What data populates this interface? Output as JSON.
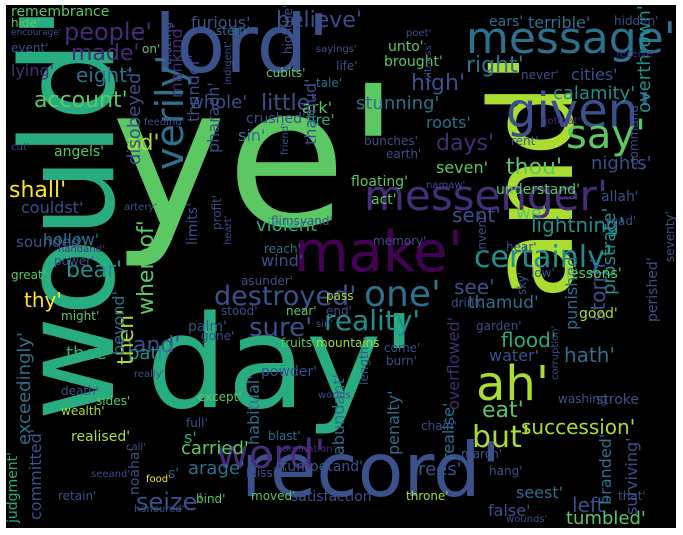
{
  "colors": {
    "background": "#000000",
    "palette": [
      "#440154",
      "#472c7a",
      "#3b518b",
      "#2c718e",
      "#21908d",
      "#27ad81",
      "#5cc863",
      "#aadc32",
      "#fde725"
    ]
  },
  "words": [
    {
      "text": "ye'",
      "color": "#5cc863"
    },
    {
      "text": "would'",
      "color": "#27ad81"
    },
    {
      "text": "day'",
      "color": "#27ad81"
    },
    {
      "text": "and'",
      "color": "#aadc32"
    },
    {
      "text": "lord'",
      "color": "#3b518b"
    },
    {
      "text": "record'",
      "color": "#3b518b"
    },
    {
      "text": "message'",
      "color": "#2c718e"
    },
    {
      "text": "given'",
      "color": "#3b518b"
    },
    {
      "text": "messenger'",
      "color": "#472c7a"
    },
    {
      "text": "make'",
      "color": "#440154"
    },
    {
      "text": "say'",
      "color": "#5cc863"
    },
    {
      "text": "word'",
      "color": "#472c7a"
    },
    {
      "text": "ah'",
      "color": "#aadc32"
    },
    {
      "text": "one'",
      "color": "#2c718e"
    },
    {
      "text": "certainly'",
      "color": "#21908d"
    },
    {
      "text": "but'",
      "color": "#aadc32"
    },
    {
      "text": "verily'",
      "color": "#2c718e"
    },
    {
      "text": "destroyed'",
      "color": "#3b518b"
    },
    {
      "text": "reality'",
      "color": "#21908d"
    },
    {
      "text": "sure'",
      "color": "#3b518b"
    },
    {
      "text": "people'",
      "color": "#472c7a"
    },
    {
      "text": "believe'",
      "color": "#3b518b"
    },
    {
      "text": "made'",
      "color": "#472c7a"
    },
    {
      "text": "eight'",
      "color": "#2c718e"
    },
    {
      "text": "right'",
      "color": "#2c718e"
    },
    {
      "text": "high'",
      "color": "#3b518b"
    },
    {
      "text": "account'",
      "color": "#5cc863"
    },
    {
      "text": "little'",
      "color": "#3b518b"
    },
    {
      "text": "whole'",
      "color": "#3b518b"
    },
    {
      "text": "stunning'",
      "color": "#2c718e"
    },
    {
      "text": "shall'",
      "color": "#fde725"
    },
    {
      "text": "ad'",
      "color": "#aadc32"
    },
    {
      "text": "thou'",
      "color": "#5cc863"
    },
    {
      "text": "days'",
      "color": "#472c7a"
    },
    {
      "text": "sent'",
      "color": "#3b518b"
    },
    {
      "text": "we'",
      "color": "#5cc863"
    },
    {
      "text": "lightning'",
      "color": "#21908d"
    },
    {
      "text": "bear'",
      "color": "#21908d"
    },
    {
      "text": "thy'",
      "color": "#fde725"
    },
    {
      "text": "see'",
      "color": "#3b518b"
    },
    {
      "text": "flood'",
      "color": "#27ad81"
    },
    {
      "text": "storm'",
      "color": "#3b518b"
    },
    {
      "text": "hath'",
      "color": "#2c718e"
    },
    {
      "text": "eat'",
      "color": "#5cc863"
    },
    {
      "text": "succession'",
      "color": "#aadc32"
    },
    {
      "text": "hand'",
      "color": "#3b518b"
    },
    {
      "text": "path'",
      "color": "#21908d"
    },
    {
      "text": "then'",
      "color": "#aadc32"
    },
    {
      "text": "whereof'",
      "color": "#5cc863"
    },
    {
      "text": "seize'",
      "color": "#3b518b"
    },
    {
      "text": "arage'",
      "color": "#2c718e"
    },
    {
      "text": "left'",
      "color": "#3b518b"
    },
    {
      "text": "tumbled'",
      "color": "#5cc863"
    },
    {
      "text": "false'",
      "color": "#3b518b"
    },
    {
      "text": "seest'",
      "color": "#2c718e"
    },
    {
      "text": "trees'",
      "color": "#3b518b"
    },
    {
      "text": "furious'",
      "color": "#3b518b"
    },
    {
      "text": "terrible'",
      "color": "#2c718e"
    },
    {
      "text": "calamity'",
      "color": "#21908d"
    },
    {
      "text": "cities'",
      "color": "#3b518b"
    },
    {
      "text": "overthrown'",
      "color": "#21908d"
    },
    {
      "text": "nights'",
      "color": "#3b518b"
    },
    {
      "text": "seven'",
      "color": "#5cc863"
    },
    {
      "text": "roots'",
      "color": "#2c718e"
    },
    {
      "text": "sin'",
      "color": "#2c718e"
    },
    {
      "text": "ark'",
      "color": "#5cc863"
    },
    {
      "text": "fire'",
      "color": "#27ad81"
    },
    {
      "text": "thunder'",
      "color": "#3b518b"
    },
    {
      "text": "mankind'",
      "color": "#472c7a"
    },
    {
      "text": "disobeyed'",
      "color": "#3b518b"
    },
    {
      "text": "pharaoh'",
      "color": "#3b518b"
    },
    {
      "text": "thamud'",
      "color": "#3b518b"
    },
    {
      "text": "violent'",
      "color": "#27ad81"
    },
    {
      "text": "wind'",
      "color": "#3b518b"
    },
    {
      "text": "floating'",
      "color": "#5cc863"
    },
    {
      "text": "act'",
      "color": "#5cc863"
    },
    {
      "text": "couldst'",
      "color": "#3b518b"
    },
    {
      "text": "sounded'",
      "color": "#3b518b"
    },
    {
      "text": "hollow'",
      "color": "#2c718e"
    },
    {
      "text": "thee'",
      "color": "#27ad81"
    },
    {
      "text": "exceedingly'",
      "color": "#2c718e"
    },
    {
      "text": "beyond'",
      "color": "#2c718e"
    },
    {
      "text": "palm'",
      "color": "#3b518b"
    },
    {
      "text": "thamud'",
      "color": "#2c718e"
    },
    {
      "text": "water'",
      "color": "#3b518b"
    },
    {
      "text": "punished'",
      "color": "#2c718e"
    },
    {
      "text": "prostrate'",
      "color": "#21908d"
    },
    {
      "text": "perished'",
      "color": "#3b518b"
    },
    {
      "text": "seventy'",
      "color": "#3b518b"
    },
    {
      "text": "surviving'",
      "color": "#3b518b"
    },
    {
      "text": "branded'",
      "color": "#2c718e"
    },
    {
      "text": "carried'",
      "color": "#5cc863"
    },
    {
      "text": "abundant'",
      "color": "#2c718e"
    },
    {
      "text": "penalty'",
      "color": "#2c718e"
    },
    {
      "text": "realise'",
      "color": "#2c718e"
    },
    {
      "text": "overflowed'",
      "color": "#472c7a"
    },
    {
      "text": "habitual'",
      "color": "#2c718e"
    },
    {
      "text": "noaha'",
      "color": "#3b518b"
    },
    {
      "text": "committed'",
      "color": "#3b518b"
    },
    {
      "text": "judgment'",
      "color": "#27ad81"
    },
    {
      "text": "remembrance",
      "color": "#5cc863"
    },
    {
      "text": "hide'",
      "color": "#5cc863"
    },
    {
      "text": "encourage'",
      "color": "#3b518b"
    },
    {
      "text": "event'",
      "color": "#3b518b"
    },
    {
      "text": "lying'",
      "color": "#472c7a"
    },
    {
      "text": "on'",
      "color": "#5cc863"
    },
    {
      "text": "blazing'",
      "color": "#3b518b"
    },
    {
      "text": "indigent'",
      "color": "#3b518b"
    },
    {
      "text": "cubits'",
      "color": "#5cc863"
    },
    {
      "text": "sayings'",
      "color": "#3b518b"
    },
    {
      "text": "life'",
      "color": "#3b518b"
    },
    {
      "text": "tale'",
      "color": "#2c718e"
    },
    {
      "text": "unto'",
      "color": "#5cc863"
    },
    {
      "text": "brought'",
      "color": "#5cc863"
    },
    {
      "text": "poet'",
      "color": "#3b518b"
    },
    {
      "text": "ears'",
      "color": "#2c718e"
    },
    {
      "text": "hidden'",
      "color": "#3b518b"
    },
    {
      "text": "receive'",
      "color": "#472c7a"
    },
    {
      "text": "never'",
      "color": "#3b518b"
    },
    {
      "text": "stern'",
      "color": "#2c718e"
    },
    {
      "text": "highthe'",
      "color": "#3b518b"
    },
    {
      "text": "feeding'",
      "color": "#3b518b"
    },
    {
      "text": "crushed'",
      "color": "#3b518b"
    },
    {
      "text": "cut'",
      "color": "#3b518b"
    },
    {
      "text": "angels'",
      "color": "#5cc863"
    },
    {
      "text": "bunches'",
      "color": "#3b518b"
    },
    {
      "text": "earth'",
      "color": "#3b518b"
    },
    {
      "text": "friend'",
      "color": "#3b518b"
    },
    {
      "text": "witness'",
      "color": "#3b518b"
    },
    {
      "text": "rent'",
      "color": "#3b518b"
    },
    {
      "text": "gotthat'",
      "color": "#472c7a"
    },
    {
      "text": "understand'",
      "color": "#5cc863"
    },
    {
      "text": "command'",
      "color": "#3b518b"
    },
    {
      "text": "allah'",
      "color": "#3b518b"
    },
    {
      "text": "read'",
      "color": "#3b518b"
    },
    {
      "text": "namaw'",
      "color": "#3b518b"
    },
    {
      "text": "artery'",
      "color": "#3b518b"
    },
    {
      "text": "flimsyand'",
      "color": "#3b518b"
    },
    {
      "text": "heart'",
      "color": "#3b518b"
    },
    {
      "text": "reach'",
      "color": "#2c718e"
    },
    {
      "text": "memory'",
      "color": "#3b518b"
    },
    {
      "text": "hear'",
      "color": "#3b518b"
    },
    {
      "text": "power'",
      "color": "#3b518b"
    },
    {
      "text": "handand'",
      "color": "#472c7a"
    },
    {
      "text": "great'",
      "color": "#5cc863"
    },
    {
      "text": "might'",
      "color": "#5cc863"
    },
    {
      "text": "limits'",
      "color": "#3b518b"
    },
    {
      "text": "profit'",
      "color": "#3b518b"
    },
    {
      "text": "asunder'",
      "color": "#3b518b"
    },
    {
      "text": "invent'",
      "color": "#3b518b"
    },
    {
      "text": "low'",
      "color": "#3b518b"
    },
    {
      "text": "lessons'",
      "color": "#5cc863"
    },
    {
      "text": "sky'",
      "color": "#3b518b"
    },
    {
      "text": "drink'",
      "color": "#3b518b"
    },
    {
      "text": "pass",
      "color": "#aadc32"
    },
    {
      "text": "stood'",
      "color": "#3b518b"
    },
    {
      "text": "near'",
      "color": "#5cc863"
    },
    {
      "text": "end'",
      "color": "#3b518b"
    },
    {
      "text": "garden'",
      "color": "#3b518b"
    },
    {
      "text": "good'",
      "color": "#aadc32"
    },
    {
      "text": "gone'",
      "color": "#3b518b"
    },
    {
      "text": "fruits'",
      "color": "#5cc863"
    },
    {
      "text": "mountains",
      "color": "#aadc32"
    },
    {
      "text": "sin'",
      "color": "#3b518b"
    },
    {
      "text": "come'",
      "color": "#3b518b"
    },
    {
      "text": "burn'",
      "color": "#3b518b"
    },
    {
      "text": "really'",
      "color": "#3b518b"
    },
    {
      "text": "powder'",
      "color": "#3b518b"
    },
    {
      "text": "except'",
      "color": "#5cc863"
    },
    {
      "text": "worlds",
      "color": "#3b518b"
    },
    {
      "text": "corruption'",
      "color": "#3b518b"
    },
    {
      "text": "washing",
      "color": "#3b518b"
    },
    {
      "text": "stroke",
      "color": "#3b518b"
    },
    {
      "text": "death'",
      "color": "#3b518b"
    },
    {
      "text": "wealth'",
      "color": "#aadc32"
    },
    {
      "text": "sides'",
      "color": "#5cc863"
    },
    {
      "text": "length'",
      "color": "#3b518b"
    },
    {
      "text": "chain'",
      "color": "#3b518b"
    },
    {
      "text": "realised'",
      "color": "#aadc32"
    },
    {
      "text": "blast'",
      "color": "#2c718e"
    },
    {
      "text": "call'",
      "color": "#3b518b"
    },
    {
      "text": "full'",
      "color": "#3b518b"
    },
    {
      "text": "seeand'",
      "color": "#3b518b"
    },
    {
      "text": "blissin'",
      "color": "#3b518b"
    },
    {
      "text": "nomination'",
      "color": "#472c7a"
    },
    {
      "text": "trumpetand'",
      "color": "#3b518b"
    },
    {
      "text": "march'",
      "color": "#3b518b"
    },
    {
      "text": "hang'",
      "color": "#3b518b"
    },
    {
      "text": "food'",
      "color": "#fde725"
    },
    {
      "text": "retain'",
      "color": "#3b518b"
    },
    {
      "text": "honoured'",
      "color": "#3b518b"
    },
    {
      "text": "bind'",
      "color": "#5cc863"
    },
    {
      "text": "moved'",
      "color": "#5cc863"
    },
    {
      "text": "satisfaction'",
      "color": "#3b518b"
    },
    {
      "text": "throne'",
      "color": "#aadc32"
    },
    {
      "text": "wounds'",
      "color": "#3b518b"
    },
    {
      "text": "that'",
      "color": "#3b518b"
    },
    {
      "text": "s'",
      "color": "#27ad81"
    },
    {
      "text": "s'",
      "color": "#3b518b"
    }
  ]
}
